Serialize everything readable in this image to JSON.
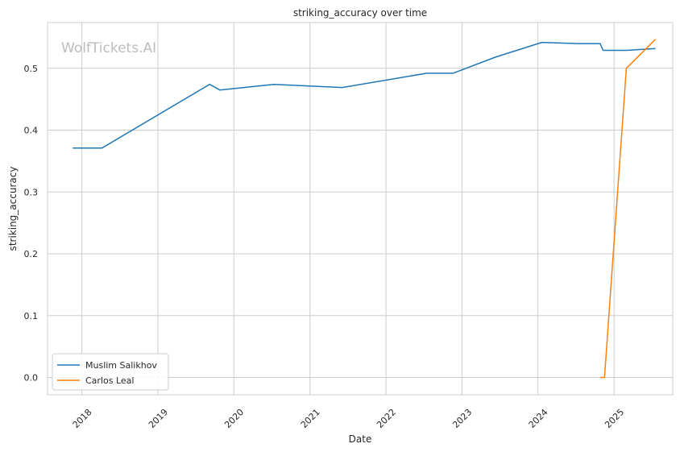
{
  "chart_data": {
    "type": "line",
    "title": "striking_accuracy over time",
    "xlabel": "Date",
    "ylabel": "striking_accuracy",
    "watermark": "WolfTickets.AI",
    "x_range": [
      "2017-07-20",
      "2025-10-10"
    ],
    "y_range": [
      -0.028,
      0.574
    ],
    "x_ticks": [
      {
        "label": "2018",
        "date": "2018-01-01"
      },
      {
        "label": "2019",
        "date": "2019-01-01"
      },
      {
        "label": "2020",
        "date": "2020-01-01"
      },
      {
        "label": "2021",
        "date": "2021-01-01"
      },
      {
        "label": "2022",
        "date": "2022-01-01"
      },
      {
        "label": "2023",
        "date": "2023-01-01"
      },
      {
        "label": "2024",
        "date": "2024-01-01"
      },
      {
        "label": "2025",
        "date": "2025-01-01"
      }
    ],
    "y_ticks": [
      {
        "label": "0.0",
        "value": 0.0
      },
      {
        "label": "0.1",
        "value": 0.1
      },
      {
        "label": "0.2",
        "value": 0.2
      },
      {
        "label": "0.3",
        "value": 0.3
      },
      {
        "label": "0.4",
        "value": 0.4
      },
      {
        "label": "0.5",
        "value": 0.5
      }
    ],
    "grid": true,
    "legend_position": "lower-left",
    "series": [
      {
        "name": "Muslim Salikhov",
        "color": "#1f77b4",
        "points": [
          {
            "x": "2017-11-18",
            "y": 0.371
          },
          {
            "x": "2018-04-07",
            "y": 0.371
          },
          {
            "x": "2019-09-07",
            "y": 0.474
          },
          {
            "x": "2019-10-26",
            "y": 0.465
          },
          {
            "x": "2020-07-11",
            "y": 0.474
          },
          {
            "x": "2021-06-05",
            "y": 0.469
          },
          {
            "x": "2022-07-16",
            "y": 0.492
          },
          {
            "x": "2022-11-19",
            "y": 0.492
          },
          {
            "x": "2023-06-10",
            "y": 0.518
          },
          {
            "x": "2024-01-20",
            "y": 0.542
          },
          {
            "x": "2024-07-13",
            "y": 0.54
          },
          {
            "x": "2024-10-26",
            "y": 0.54
          },
          {
            "x": "2024-11-09",
            "y": 0.529
          },
          {
            "x": "2025-03-01",
            "y": 0.529
          },
          {
            "x": "2025-07-19",
            "y": 0.532
          }
        ]
      },
      {
        "name": "Carlos Leal",
        "color": "#ff7f0e",
        "points": [
          {
            "x": "2024-10-26",
            "y": 0.0
          },
          {
            "x": "2024-11-16",
            "y": 0.0
          },
          {
            "x": "2025-03-01",
            "y": 0.5
          },
          {
            "x": "2025-07-19",
            "y": 0.547
          }
        ]
      }
    ]
  }
}
